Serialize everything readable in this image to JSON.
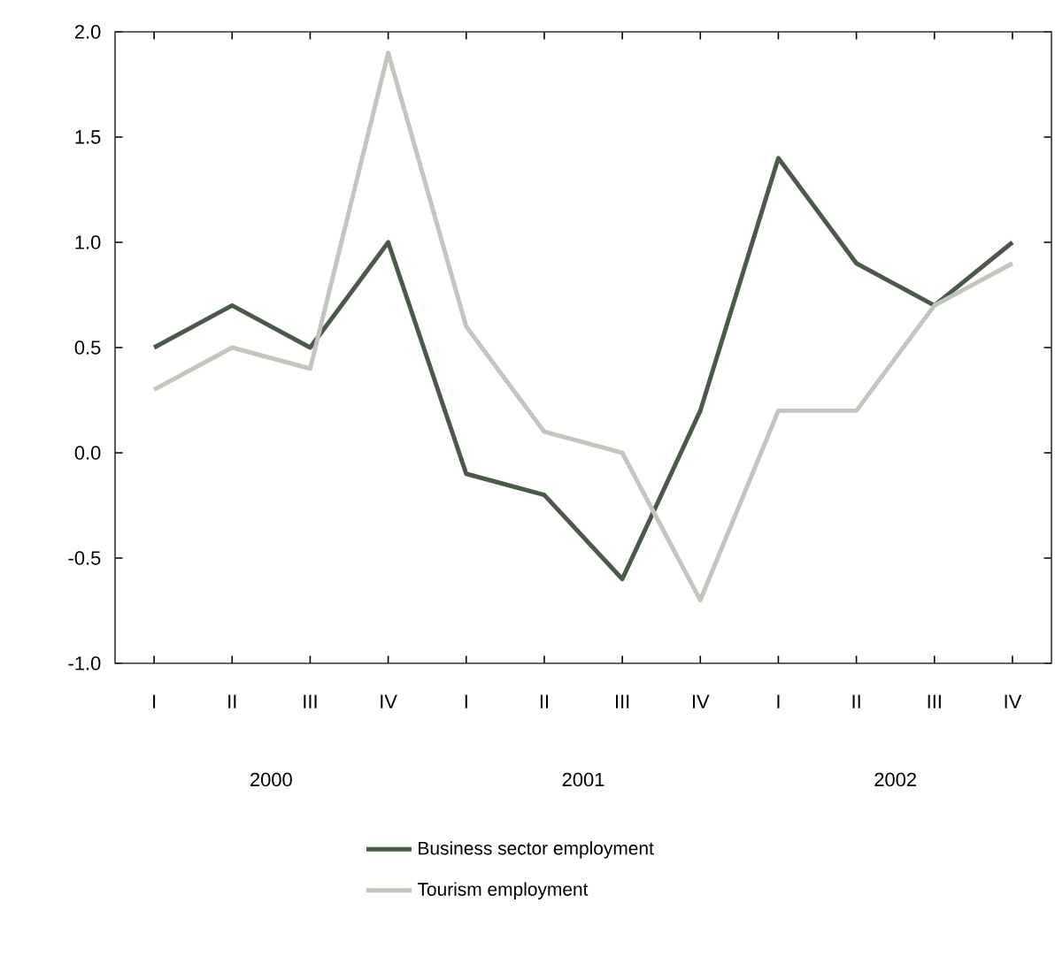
{
  "chart_data": {
    "type": "line",
    "categories": [
      "I",
      "II",
      "III",
      "IV",
      "I",
      "II",
      "III",
      "IV",
      "I",
      "II",
      "III",
      "IV"
    ],
    "series": [
      {
        "name": "Business sector employment",
        "color": "#4a5a48",
        "values": [
          0.5,
          0.7,
          0.5,
          1.0,
          -0.1,
          -0.2,
          -0.6,
          0.2,
          1.4,
          0.9,
          0.7,
          1.0
        ]
      },
      {
        "name": "Tourism employment",
        "color": "#c2c6be",
        "values": [
          0.3,
          0.5,
          0.4,
          1.9,
          0.6,
          0.1,
          0.0,
          -0.7,
          0.2,
          0.2,
          0.7,
          0.9
        ]
      }
    ],
    "annotations": [
      "2000",
      "2001",
      "2002"
    ],
    "ylim": [
      -1,
      2
    ],
    "yticks": [
      {
        "value": -1,
        "label": "-1.0"
      },
      {
        "value": -0.5,
        "label": "-0.5"
      },
      {
        "value": 0,
        "label": "0.0"
      },
      {
        "value": 0.5,
        "label": "0.5"
      },
      {
        "value": 1,
        "label": "1.0"
      },
      {
        "value": 1.5,
        "label": "1.5"
      },
      {
        "value": 2,
        "label": "2.0"
      }
    ],
    "legend": "bottom",
    "marker": "none",
    "line_style": "solid",
    "grid": false
  }
}
